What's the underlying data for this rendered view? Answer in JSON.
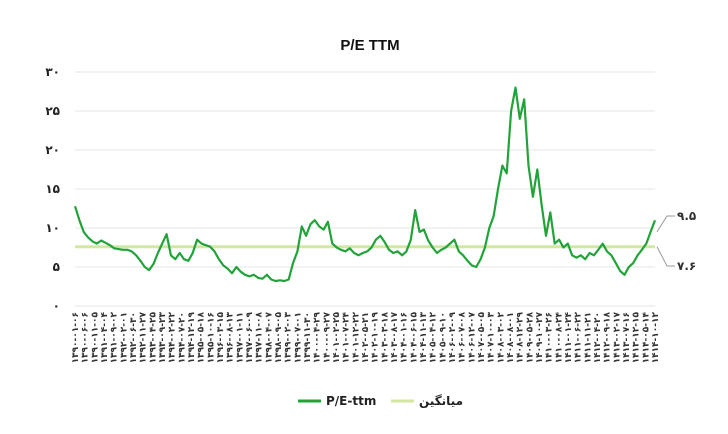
{
  "chart_data": {
    "type": "line",
    "title": "P/E TTM",
    "xlabel": "",
    "ylabel": "",
    "ylim": [
      0,
      30
    ],
    "yticks": [
      "۰",
      "۵",
      "۱۰",
      "۱۵",
      "۲۰",
      "۲۵",
      "۳۰"
    ],
    "grid": true,
    "legend_position": "bottom",
    "x_tick_labels": [
      "۱۳۹۰-۰۱-۰۶",
      "۱۳۹۰-۰۶-۰۶",
      "۱۳۹۰-۱۱-۰۵",
      "۱۳۹۱-۰۴-۰۴",
      "۱۳۹۱-۰۹-۰۲",
      "۱۳۹۲-۰۲-۰۱",
      "۱۳۹۲-۰۶-۳۰",
      "۱۳۹۲-۱۱-۲۷",
      "۱۳۹۳-۰۴-۲۵",
      "۱۳۹۳-۰۹-۲۳",
      "۱۳۹۴-۰۲-۲۲",
      "۱۳۹۴-۰۷-۲۰",
      "۱۳۹۴-۱۲-۱۹",
      "۱۳۹۵-۰۵-۱۸",
      "۱۳۹۵-۱۰-۱۶",
      "۱۳۹۶-۰۳-۱۵",
      "۱۳۹۶-۰۸-۱۳",
      "۱۳۹۷-۰۱-۱۱",
      "۱۳۹۷-۰۶-۰۹",
      "۱۳۹۷-۱۱-۰۸",
      "۱۳۹۸-۰۴-۰۷",
      "۱۳۹۸-۰۹-۰۵",
      "۱۳۹۹-۰۲-۰۳",
      "۱۳۹۹-۰۷-۰۱",
      "۱۳۹۹-۱۱-۳۰",
      "۱۴۰۰-۰۴-۲۹",
      "۱۴۰۰-۰۹-۲۷",
      "۱۴۰۱-۰۲-۲۵",
      "۱۴۰۱-۰۷-۲۴",
      "۱۴۰۱-۱۲-۲۲",
      "۱۴۰۲-۰۵-۲۱",
      "۱۴۰۲-۱۰-۱۹",
      "۱۴۰۳-۰۳-۱۸",
      "۱۴۰۳-۰۸-۱۷",
      "۱۴۰۴-۰۱-۱۶",
      "۱۴۰۴-۰۶-۱۵",
      "۱۴۰۴-۱۱-۱۳",
      "۱۴۰۵-۰۴-۱۲",
      "۱۴۰۵-۰۹-۱۰",
      "۱۴۰۶-۰۲-۰۹",
      "۱۴۰۶-۰۷-۰۸",
      "۱۴۰۶-۱۲-۰۷",
      "۱۴۰۷-۰۵-۰۵",
      "۱۴۰۷-۱۰-۰۳",
      "۱۴۰۸-۰۳-۰۲",
      "۱۴۰۸-۰۸-۰۱",
      "۱۴۰۸-۱۲-۲۹",
      "۱۴۰۹-۰۵-۲۸",
      "۱۴۰۹-۱۰-۲۷",
      "۱۴۱۰-۰۳-۲۶",
      "۱۴۱۰-۰۸-۲۴",
      "۱۴۱۱-۰۱-۲۴",
      "۱۴۱۱-۰۶-۲۲",
      "۱۴۱۱-۱۱-۲۱",
      "۱۴۱۲-۰۴-۲۰",
      "۱۴۱۲-۰۹-۱۸",
      "۱۴۱۳-۰۲-۱۷",
      "۱۴۱۳-۰۷-۱۶",
      "۱۴۱۳-۱۲-۱۵",
      "۱۴۱۴-۰۵-۱۴",
      "۱۴۱۴-۱۰-۱۲"
    ],
    "series": [
      {
        "name": "P/E-ttm",
        "color": "#22a33a",
        "values": [
          12.8,
          11.0,
          9.5,
          8.8,
          8.3,
          8.0,
          8.4,
          8.1,
          7.8,
          7.4,
          7.3,
          7.2,
          7.2,
          7.0,
          6.5,
          5.8,
          5.0,
          4.6,
          5.4,
          6.8,
          8.0,
          9.2,
          6.5,
          6.0,
          6.8,
          6.0,
          5.8,
          6.8,
          8.5,
          8.0,
          7.8,
          7.6,
          7.0,
          6.0,
          5.2,
          4.8,
          4.2,
          5.0,
          4.4,
          4.0,
          3.8,
          4.0,
          3.6,
          3.5,
          4.0,
          3.4,
          3.2,
          3.3,
          3.2,
          3.4,
          5.5,
          7.0,
          10.2,
          9.0,
          10.5,
          11.0,
          10.2,
          9.8,
          10.8,
          8.0,
          7.5,
          7.2,
          7.0,
          7.4,
          6.8,
          6.5,
          6.8,
          7.0,
          7.5,
          8.5,
          9.0,
          8.2,
          7.2,
          6.8,
          7.0,
          6.5,
          7.0,
          8.5,
          12.3,
          9.5,
          9.8,
          8.4,
          7.5,
          6.8,
          7.2,
          7.5,
          8.0,
          8.5,
          7.0,
          6.5,
          5.8,
          5.2,
          5.0,
          6.0,
          7.5,
          10.0,
          11.5,
          15.0,
          18.0,
          17.0,
          25.0,
          28.0,
          24.0,
          26.5,
          18.0,
          14.0,
          17.5,
          13.0,
          9.0,
          12.0,
          8.0,
          8.5,
          7.5,
          8.0,
          6.5,
          6.2,
          6.5,
          6.0,
          6.8,
          6.5,
          7.2,
          8.0,
          7.0,
          6.5,
          5.5,
          4.5,
          4.0,
          5.0,
          5.5,
          6.5,
          7.2,
          8.0,
          9.5,
          11.0
        ]
      },
      {
        "name": "میانگین",
        "color": "#d2e8a2",
        "values": [
          7.6,
          7.6
        ]
      }
    ],
    "annotations": [
      {
        "text": "۹.۵",
        "value": 9.5
      },
      {
        "text": "۷.۶",
        "value": 7.6
      }
    ],
    "legend": [
      "P/E-ttm",
      "میانگین"
    ]
  }
}
